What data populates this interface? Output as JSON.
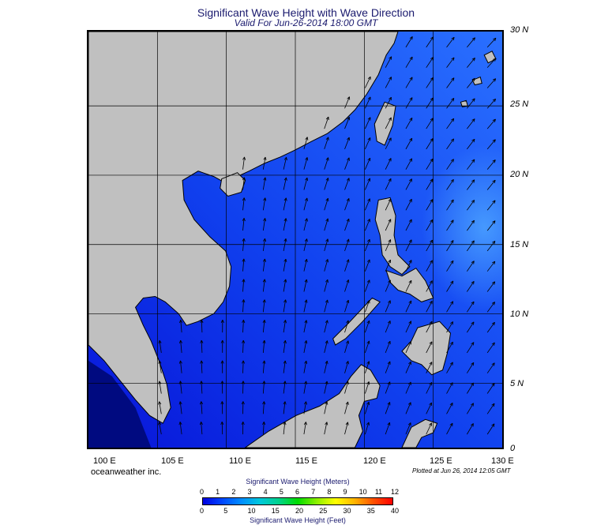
{
  "title": "Significant Wave Height with Wave Direction",
  "subtitle": "Valid For Jun-26-2014 18:00 GMT",
  "lat_labels": [
    "30 N",
    "25 N",
    "20 N",
    "15 N",
    "10 N",
    "5 N",
    "0"
  ],
  "lon_labels": [
    "100 E",
    "105 E",
    "110 E",
    "115 E",
    "120 E",
    "125 E",
    "130 E"
  ],
  "credit": "oceanweather inc.",
  "plotted": "Plotted at Jun 26, 2014 12:05 GMT",
  "legend": {
    "meters_label": "Significant Wave Height (Meters)",
    "feet_label": "Significant Wave Height (Feet)",
    "meters_ticks": [
      "0",
      "1",
      "2",
      "3",
      "4",
      "5",
      "6",
      "7",
      "8",
      "9",
      "10",
      "11",
      "12"
    ],
    "feet_ticks": [
      "0",
      "5",
      "10",
      "15",
      "20",
      "25",
      "30",
      "35",
      "40"
    ]
  },
  "colors": {
    "land": "#c0c0c0",
    "ocean_low": "#0a1ee6",
    "ocean_mid": "#1e5af5",
    "ocean_high": "#3c8cff",
    "colorbar": [
      "#0000e0",
      "#0046ff",
      "#008cff",
      "#00c8dc",
      "#00d28c",
      "#00dc00",
      "#8cf000",
      "#ffff00",
      "#ffb400",
      "#ff5000",
      "#ff0000"
    ]
  }
}
